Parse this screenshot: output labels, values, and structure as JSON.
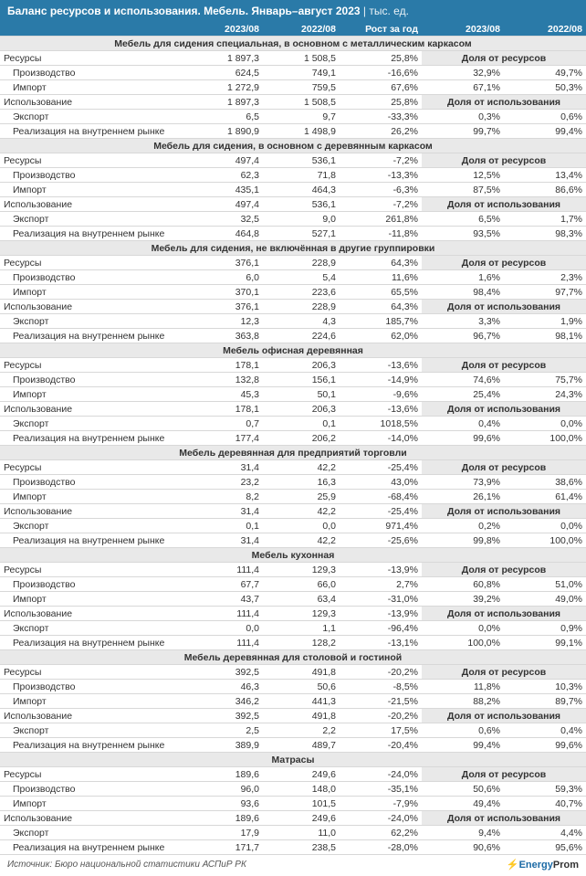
{
  "title_main": "Баланс ресурсов и использования. Мебель. Январь–август 2023",
  "title_unit": "тыс. ед.",
  "columns": {
    "c1": "2023/08",
    "c2": "2022/08",
    "c3": "Рост за год",
    "c4": "2023/08",
    "c5": "2022/08"
  },
  "row_labels": {
    "resources": "Ресурсы",
    "production": "Производство",
    "import": "Импорт",
    "usage": "Использование",
    "export": "Экспорт",
    "domestic": "Реализация на внутреннем рынке"
  },
  "share_res": "Доля от ресурсов",
  "share_use": "Доля от использования",
  "sections": [
    {
      "title": "Мебель для сидения специальная, в основном с металлическим каркасом",
      "rows": [
        {
          "k": "resources",
          "v": [
            "1 897,3",
            "1 508,5",
            "25,8%",
            "",
            ""
          ],
          "head": "res"
        },
        {
          "k": "production",
          "v": [
            "624,5",
            "749,1",
            "-16,6%",
            "32,9%",
            "49,7%"
          ]
        },
        {
          "k": "import",
          "v": [
            "1 272,9",
            "759,5",
            "67,6%",
            "67,1%",
            "50,3%"
          ]
        },
        {
          "k": "usage",
          "v": [
            "1 897,3",
            "1 508,5",
            "25,8%",
            "",
            ""
          ],
          "head": "use"
        },
        {
          "k": "export",
          "v": [
            "6,5",
            "9,7",
            "-33,3%",
            "0,3%",
            "0,6%"
          ]
        },
        {
          "k": "domestic",
          "v": [
            "1 890,9",
            "1 498,9",
            "26,2%",
            "99,7%",
            "99,4%"
          ]
        }
      ]
    },
    {
      "title": "Мебель для сидения, в основном с деревянным каркасом",
      "rows": [
        {
          "k": "resources",
          "v": [
            "497,4",
            "536,1",
            "-7,2%",
            "",
            ""
          ],
          "head": "res"
        },
        {
          "k": "production",
          "v": [
            "62,3",
            "71,8",
            "-13,3%",
            "12,5%",
            "13,4%"
          ]
        },
        {
          "k": "import",
          "v": [
            "435,1",
            "464,3",
            "-6,3%",
            "87,5%",
            "86,6%"
          ]
        },
        {
          "k": "usage",
          "v": [
            "497,4",
            "536,1",
            "-7,2%",
            "",
            ""
          ],
          "head": "use"
        },
        {
          "k": "export",
          "v": [
            "32,5",
            "9,0",
            "261,8%",
            "6,5%",
            "1,7%"
          ]
        },
        {
          "k": "domestic",
          "v": [
            "464,8",
            "527,1",
            "-11,8%",
            "93,5%",
            "98,3%"
          ]
        }
      ]
    },
    {
      "title": "Мебель для сидения, не включённая в другие группировки",
      "rows": [
        {
          "k": "resources",
          "v": [
            "376,1",
            "228,9",
            "64,3%",
            "",
            ""
          ],
          "head": "res"
        },
        {
          "k": "production",
          "v": [
            "6,0",
            "5,4",
            "11,6%",
            "1,6%",
            "2,3%"
          ]
        },
        {
          "k": "import",
          "v": [
            "370,1",
            "223,6",
            "65,5%",
            "98,4%",
            "97,7%"
          ]
        },
        {
          "k": "usage",
          "v": [
            "376,1",
            "228,9",
            "64,3%",
            "",
            ""
          ],
          "head": "use"
        },
        {
          "k": "export",
          "v": [
            "12,3",
            "4,3",
            "185,7%",
            "3,3%",
            "1,9%"
          ]
        },
        {
          "k": "domestic",
          "v": [
            "363,8",
            "224,6",
            "62,0%",
            "96,7%",
            "98,1%"
          ]
        }
      ]
    },
    {
      "title": "Мебель офисная деревянная",
      "rows": [
        {
          "k": "resources",
          "v": [
            "178,1",
            "206,3",
            "-13,6%",
            "",
            ""
          ],
          "head": "res"
        },
        {
          "k": "production",
          "v": [
            "132,8",
            "156,1",
            "-14,9%",
            "74,6%",
            "75,7%"
          ]
        },
        {
          "k": "import",
          "v": [
            "45,3",
            "50,1",
            "-9,6%",
            "25,4%",
            "24,3%"
          ]
        },
        {
          "k": "usage",
          "v": [
            "178,1",
            "206,3",
            "-13,6%",
            "",
            ""
          ],
          "head": "use"
        },
        {
          "k": "export",
          "v": [
            "0,7",
            "0,1",
            "1018,5%",
            "0,4%",
            "0,0%"
          ]
        },
        {
          "k": "domestic",
          "v": [
            "177,4",
            "206,2",
            "-14,0%",
            "99,6%",
            "100,0%"
          ]
        }
      ]
    },
    {
      "title": "Мебель деревянная для предприятий торговли",
      "rows": [
        {
          "k": "resources",
          "v": [
            "31,4",
            "42,2",
            "-25,4%",
            "",
            ""
          ],
          "head": "res"
        },
        {
          "k": "production",
          "v": [
            "23,2",
            "16,3",
            "43,0%",
            "73,9%",
            "38,6%"
          ]
        },
        {
          "k": "import",
          "v": [
            "8,2",
            "25,9",
            "-68,4%",
            "26,1%",
            "61,4%"
          ]
        },
        {
          "k": "usage",
          "v": [
            "31,4",
            "42,2",
            "-25,4%",
            "",
            ""
          ],
          "head": "use"
        },
        {
          "k": "export",
          "v": [
            "0,1",
            "0,0",
            "971,4%",
            "0,2%",
            "0,0%"
          ]
        },
        {
          "k": "domestic",
          "v": [
            "31,4",
            "42,2",
            "-25,6%",
            "99,8%",
            "100,0%"
          ]
        }
      ]
    },
    {
      "title": "Мебель кухонная",
      "rows": [
        {
          "k": "resources",
          "v": [
            "111,4",
            "129,3",
            "-13,9%",
            "",
            ""
          ],
          "head": "res"
        },
        {
          "k": "production",
          "v": [
            "67,7",
            "66,0",
            "2,7%",
            "60,8%",
            "51,0%"
          ]
        },
        {
          "k": "import",
          "v": [
            "43,7",
            "63,4",
            "-31,0%",
            "39,2%",
            "49,0%"
          ]
        },
        {
          "k": "usage",
          "v": [
            "111,4",
            "129,3",
            "-13,9%",
            "",
            ""
          ],
          "head": "use"
        },
        {
          "k": "export",
          "v": [
            "0,0",
            "1,1",
            "-96,4%",
            "0,0%",
            "0,9%"
          ]
        },
        {
          "k": "domestic",
          "v": [
            "111,4",
            "128,2",
            "-13,1%",
            "100,0%",
            "99,1%"
          ]
        }
      ]
    },
    {
      "title": "Мебель деревянная для столовой и гостиной",
      "rows": [
        {
          "k": "resources",
          "v": [
            "392,5",
            "491,8",
            "-20,2%",
            "",
            ""
          ],
          "head": "res"
        },
        {
          "k": "production",
          "v": [
            "46,3",
            "50,6",
            "-8,5%",
            "11,8%",
            "10,3%"
          ]
        },
        {
          "k": "import",
          "v": [
            "346,2",
            "441,3",
            "-21,5%",
            "88,2%",
            "89,7%"
          ]
        },
        {
          "k": "usage",
          "v": [
            "392,5",
            "491,8",
            "-20,2%",
            "",
            ""
          ],
          "head": "use"
        },
        {
          "k": "export",
          "v": [
            "2,5",
            "2,2",
            "17,5%",
            "0,6%",
            "0,4%"
          ]
        },
        {
          "k": "domestic",
          "v": [
            "389,9",
            "489,7",
            "-20,4%",
            "99,4%",
            "99,6%"
          ]
        }
      ]
    },
    {
      "title": "Матрасы",
      "rows": [
        {
          "k": "resources",
          "v": [
            "189,6",
            "249,6",
            "-24,0%",
            "",
            ""
          ],
          "head": "res"
        },
        {
          "k": "production",
          "v": [
            "96,0",
            "148,0",
            "-35,1%",
            "50,6%",
            "59,3%"
          ]
        },
        {
          "k": "import",
          "v": [
            "93,6",
            "101,5",
            "-7,9%",
            "49,4%",
            "40,7%"
          ]
        },
        {
          "k": "usage",
          "v": [
            "189,6",
            "249,6",
            "-24,0%",
            "",
            ""
          ],
          "head": "use"
        },
        {
          "k": "export",
          "v": [
            "17,9",
            "11,0",
            "62,2%",
            "9,4%",
            "4,4%"
          ]
        },
        {
          "k": "domestic",
          "v": [
            "171,7",
            "238,5",
            "-28,0%",
            "90,6%",
            "95,6%"
          ]
        }
      ]
    }
  ],
  "source": "Источник: Бюро национальной статистики АСПиР РК",
  "logo": "EnergyProm"
}
